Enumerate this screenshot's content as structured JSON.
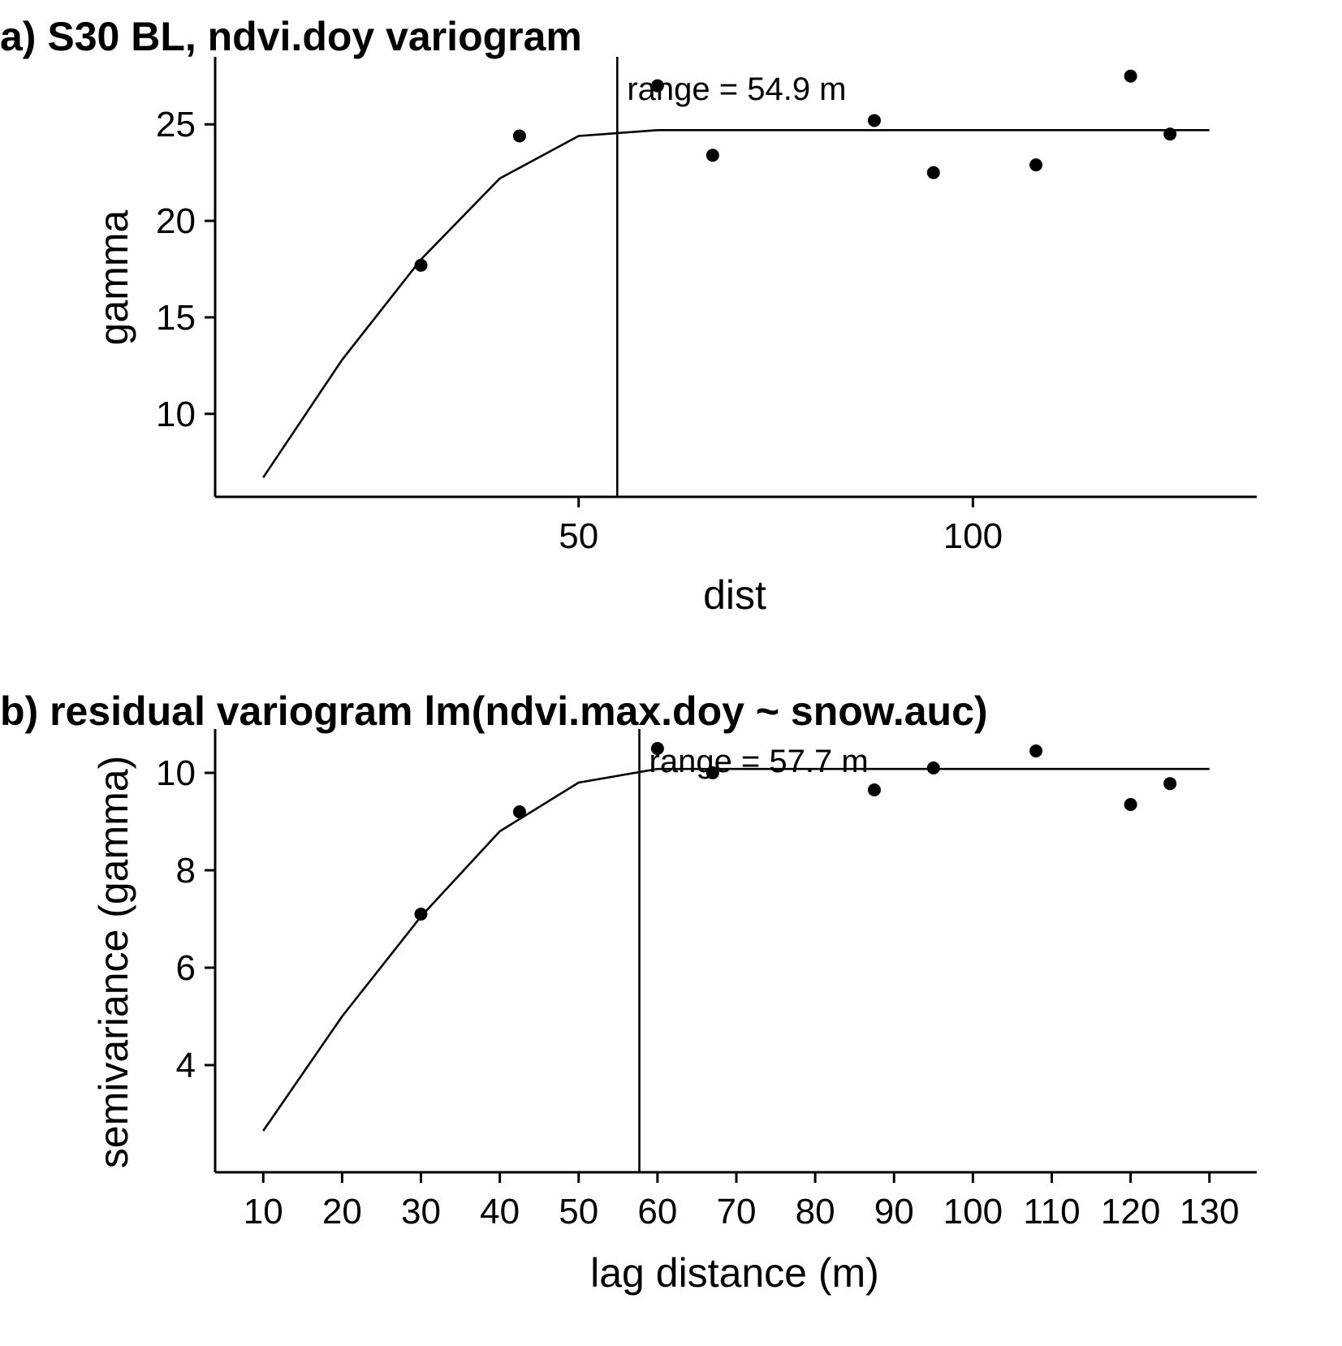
{
  "chart_data": [
    {
      "type": "scatter",
      "title": "a) S30 BL, ndvi.doy variogram",
      "xlabel": "dist",
      "ylabel": "gamma",
      "xlim": [
        3.9,
        136
      ],
      "ylim": [
        5.7,
        28.5
      ],
      "xticks": [
        50,
        100
      ],
      "yticks": [
        10,
        15,
        20,
        25
      ],
      "grid": false,
      "points": {
        "x": [
          30,
          42.5,
          60,
          67,
          87.5,
          95,
          108,
          120,
          125
        ],
        "y": [
          17.7,
          24.4,
          27.0,
          23.4,
          25.2,
          22.5,
          22.9,
          27.5,
          24.5
        ]
      },
      "fit_line": {
        "x": [
          10,
          20,
          30,
          40,
          50,
          60,
          70,
          80,
          90,
          100,
          110,
          120,
          130
        ],
        "y": [
          6.7,
          12.8,
          18.0,
          22.2,
          24.4,
          24.7,
          24.7,
          24.7,
          24.7,
          24.7,
          24.7,
          24.7,
          24.7
        ]
      },
      "range_line": {
        "x": 54.9,
        "label": "range = 54.9 m"
      }
    },
    {
      "type": "scatter",
      "title": "b) residual variogram lm(ndvi.max.doy ~ snow.auc)",
      "xlabel": "lag distance (m)",
      "ylabel": "semivariance (gamma)",
      "xlim": [
        3.9,
        136
      ],
      "ylim": [
        1.8,
        10.9
      ],
      "xticks": [
        10,
        20,
        30,
        40,
        50,
        60,
        70,
        80,
        90,
        100,
        110,
        120,
        130
      ],
      "yticks": [
        4,
        6,
        8,
        10
      ],
      "grid": false,
      "points": {
        "x": [
          30,
          42.5,
          60,
          67,
          87.5,
          95,
          108,
          120,
          125
        ],
        "y": [
          7.1,
          9.2,
          10.5,
          10.0,
          9.65,
          10.1,
          10.45,
          9.35,
          9.78
        ]
      },
      "fit_line": {
        "x": [
          10,
          20,
          30,
          40,
          50,
          60,
          70,
          80,
          90,
          100,
          110,
          120,
          130
        ],
        "y": [
          2.65,
          5.0,
          7.05,
          8.8,
          9.8,
          10.08,
          10.08,
          10.08,
          10.08,
          10.08,
          10.08,
          10.08,
          10.08
        ]
      },
      "range_line": {
        "x": 57.7,
        "label": "range = 57.7 m"
      }
    }
  ]
}
